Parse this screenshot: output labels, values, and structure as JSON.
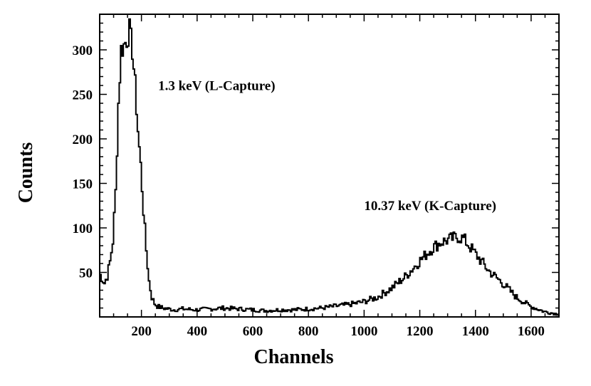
{
  "chart_data": {
    "type": "line",
    "title": "",
    "xlabel": "Channels",
    "ylabel": "Counts",
    "xlim": [
      50,
      1700
    ],
    "ylim": [
      0,
      340
    ],
    "grid": false,
    "x_ticks": [
      200,
      400,
      600,
      800,
      1000,
      1200,
      1400,
      1600
    ],
    "x_tick_labels": [
      "200",
      "400",
      "600",
      "800",
      "1000",
      "1200",
      "1400",
      "1600"
    ],
    "y_ticks": [
      50,
      100,
      150,
      200,
      250,
      300
    ],
    "y_tick_labels": [
      "50",
      "100",
      "150",
      "200",
      "250",
      "300"
    ],
    "annotations": [
      {
        "text": "1.3 keV (L-Capture)",
        "x": 260,
        "y": 255
      },
      {
        "text": "10.37 keV (K-Capture)",
        "x": 1000,
        "y": 120
      }
    ],
    "series": [
      {
        "x": [
          50,
          60,
          70,
          80,
          90,
          100,
          110,
          120,
          130,
          140,
          150,
          160,
          170,
          180,
          190,
          200,
          210,
          220,
          230,
          240,
          250,
          260,
          280,
          300,
          320,
          350,
          400,
          450,
          500,
          550,
          600,
          650,
          700,
          750,
          800,
          850,
          900,
          950,
          1000,
          1050,
          1100,
          1150,
          1200,
          1250,
          1280,
          1300,
          1320,
          1340,
          1360,
          1380,
          1400,
          1420,
          1450,
          1500,
          1550,
          1600,
          1650,
          1700
        ],
        "y": [
          50,
          44,
          38,
          46,
          62,
          85,
          140,
          240,
          300,
          305,
          312,
          322,
          300,
          260,
          210,
          170,
          120,
          75,
          40,
          22,
          15,
          12,
          10,
          9,
          8,
          9,
          8,
          9,
          10,
          9,
          8,
          7,
          8,
          8,
          9,
          10,
          12,
          14,
          17,
          22,
          32,
          45,
          62,
          78,
          84,
          86,
          88,
          90,
          88,
          80,
          72,
          64,
          52,
          38,
          22,
          12,
          6,
          3
        ]
      }
    ]
  }
}
